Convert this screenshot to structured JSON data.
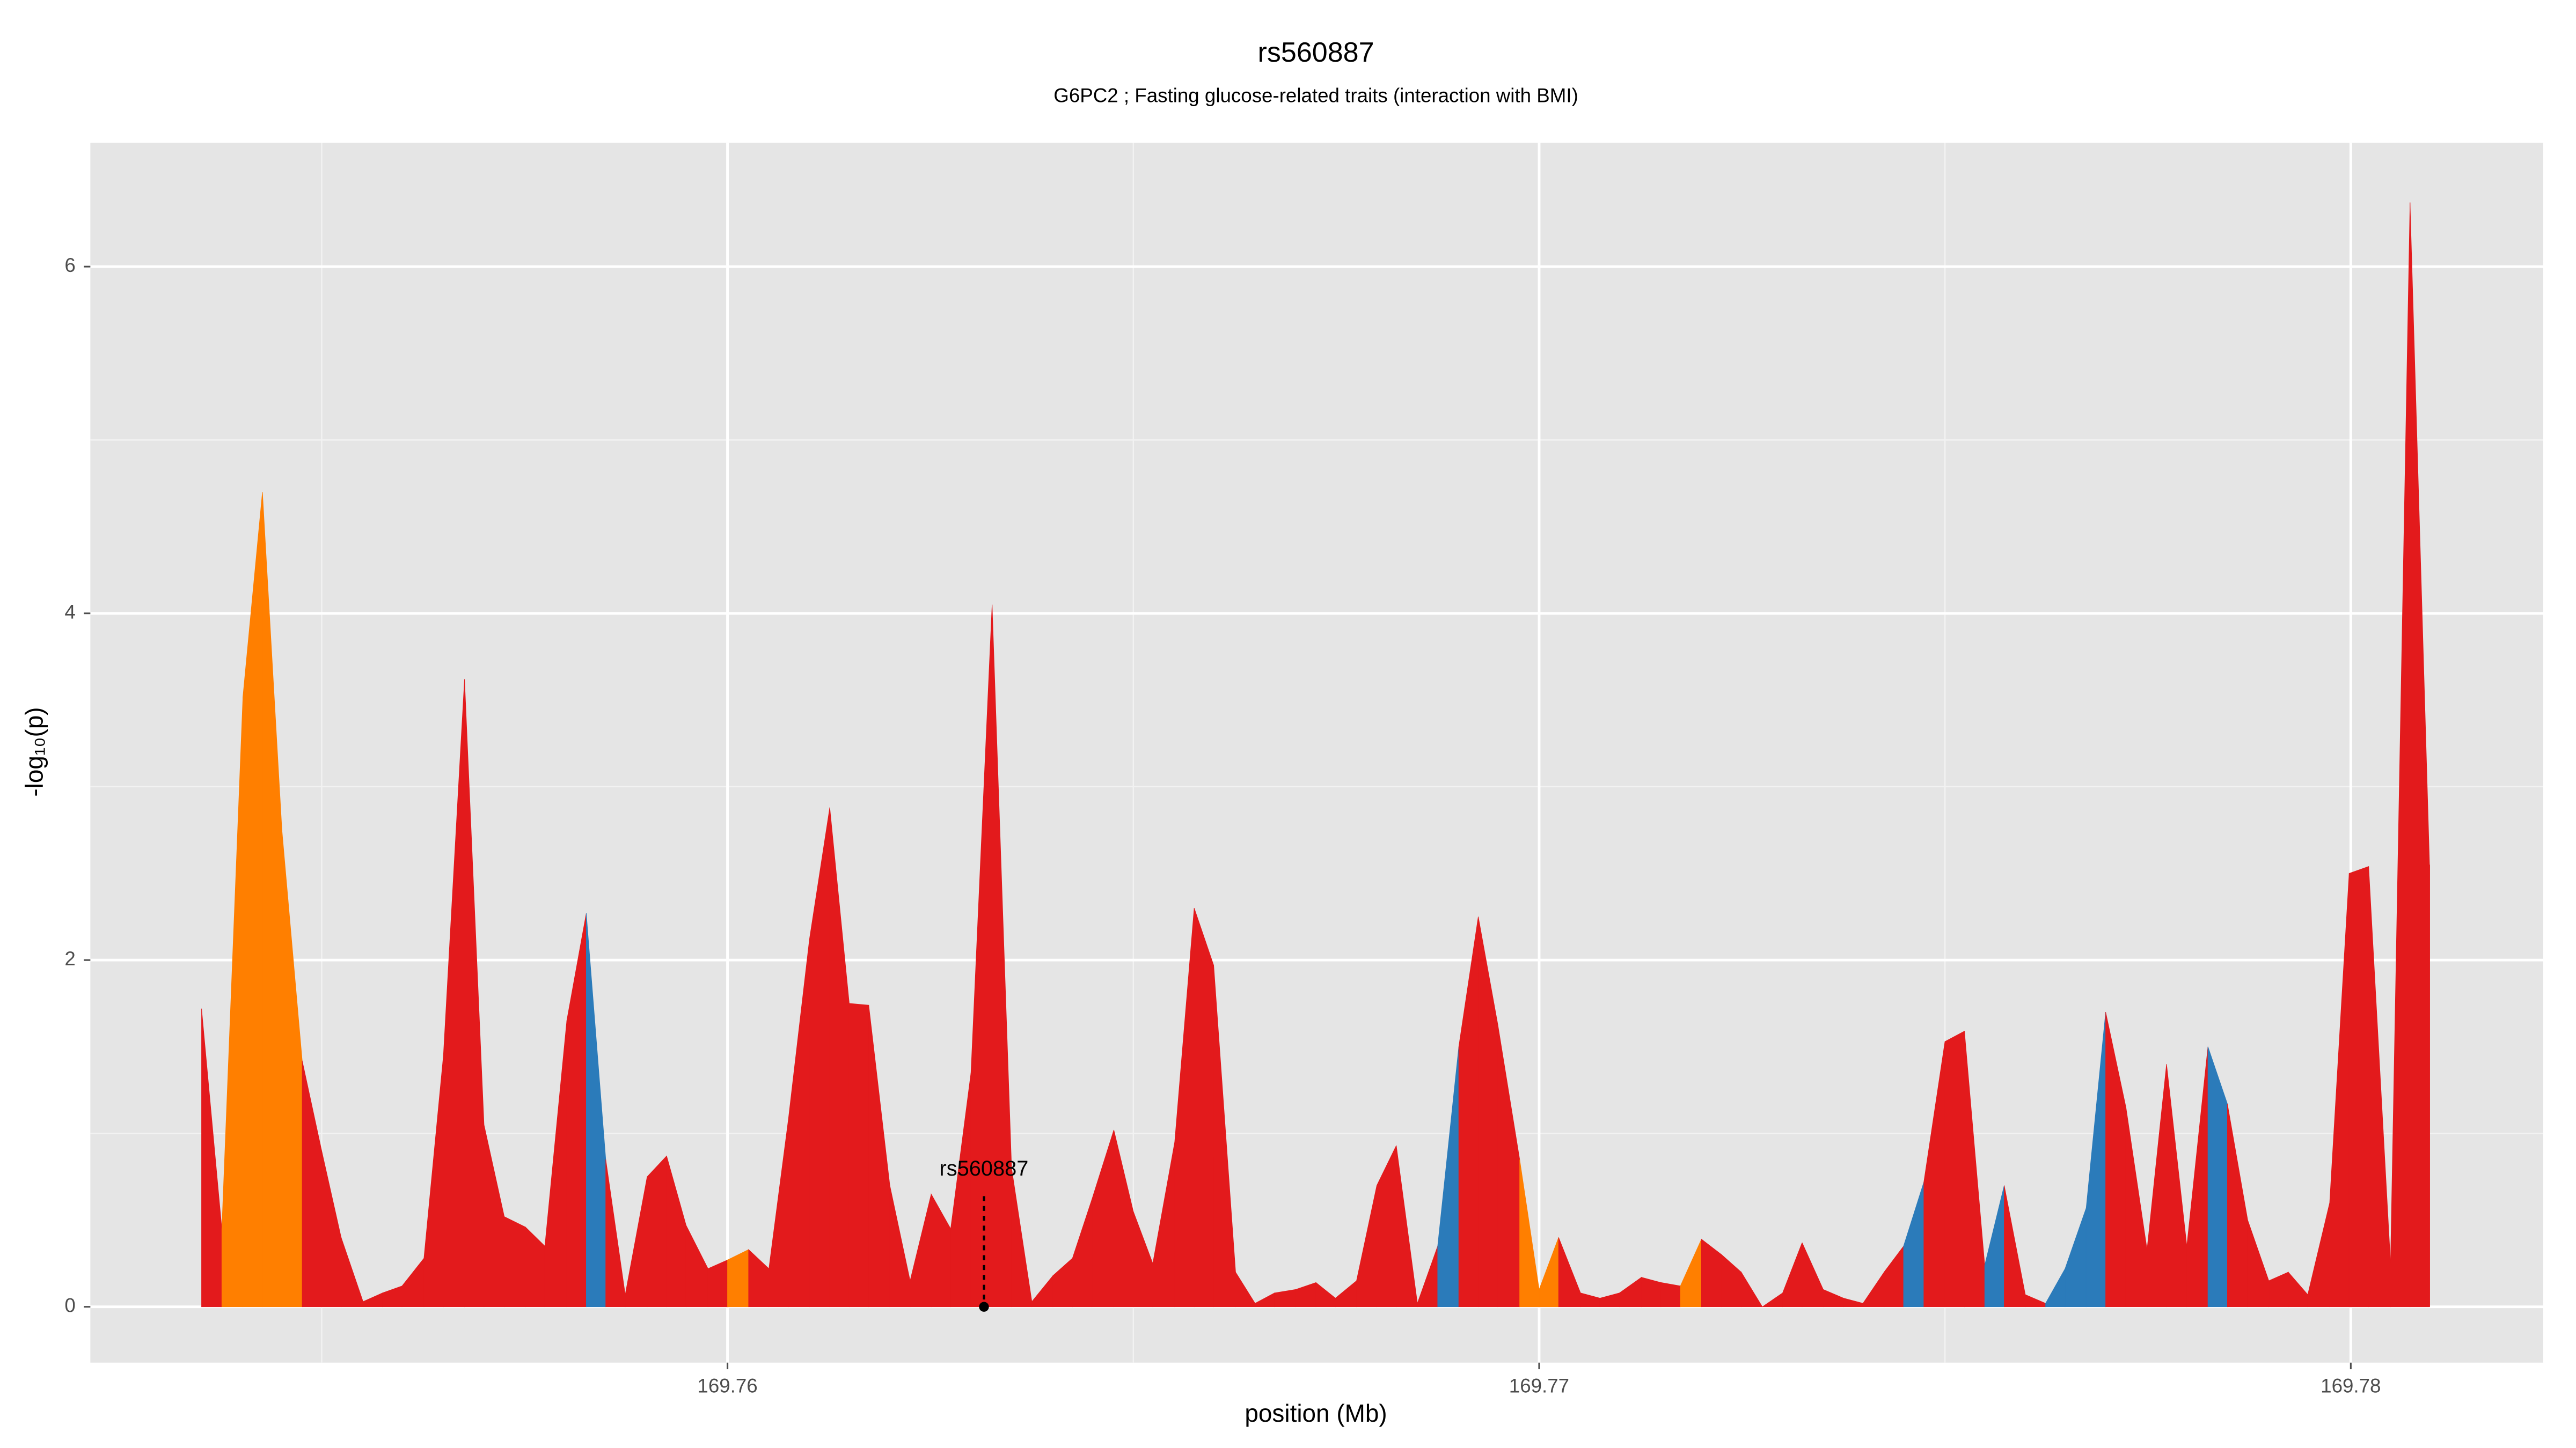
{
  "chart_data": {
    "type": "area",
    "title": "rs560887",
    "subtitle": "G6PC2 ; Fasting glucose-related traits (interaction with BMI)",
    "xlabel": "position (Mb)",
    "ylabel": "-log₁₀(p)",
    "xlim": [
      169.75215,
      169.78237
    ],
    "ylim": [
      -0.322,
      6.714
    ],
    "xticks": [
      169.76,
      169.77,
      169.78
    ],
    "yticks": [
      0,
      2,
      4,
      6
    ],
    "x_minor_grid": [
      169.755,
      169.765,
      169.775
    ],
    "y_minor_grid": [
      1,
      3,
      5
    ],
    "grid": true,
    "x": [
      169.75352,
      169.75377,
      169.75403,
      169.75427,
      169.75451,
      169.75476,
      169.755,
      169.75524,
      169.75551,
      169.75575,
      169.75599,
      169.75626,
      169.7565,
      169.75676,
      169.757,
      169.75725,
      169.75751,
      169.75775,
      169.75802,
      169.75826,
      169.7585,
      169.75874,
      169.75901,
      169.75925,
      169.75949,
      169.75976,
      169.76,
      169.76026,
      169.76051,
      169.76075,
      169.76101,
      169.76126,
      169.7615,
      169.76174,
      169.762,
      169.76225,
      169.76251,
      169.76275,
      169.763,
      169.76326,
      169.7635,
      169.76375,
      169.76401,
      169.76425,
      169.76449,
      169.76476,
      169.765,
      169.76524,
      169.76551,
      169.76575,
      169.76599,
      169.76626,
      169.7665,
      169.76674,
      169.767,
      169.76725,
      169.76749,
      169.76775,
      169.768,
      169.76824,
      169.7685,
      169.76875,
      169.76901,
      169.76925,
      169.76949,
      169.76976,
      169.77,
      169.77024,
      169.77051,
      169.77075,
      169.77099,
      169.77126,
      169.7715,
      169.77174,
      169.772,
      169.77225,
      169.77249,
      169.77275,
      169.773,
      169.77324,
      169.7735,
      169.77375,
      169.77399,
      169.77425,
      169.77449,
      169.77474,
      169.775,
      169.77524,
      169.77549,
      169.77573,
      169.77599,
      169.77624,
      169.77648,
      169.77674,
      169.77698,
      169.77723,
      169.77749,
      169.77773,
      169.77798,
      169.77824,
      169.77848,
      169.77873,
      169.77899,
      169.77923,
      169.77947,
      169.77974,
      169.77998,
      169.78022,
      169.78049,
      169.78073,
      169.78097
    ],
    "values": [
      1.72,
      0.45,
      3.52,
      4.7,
      2.75,
      1.42,
      0.9,
      0.4,
      0.03,
      0.08,
      0.12,
      0.28,
      1.45,
      3.62,
      1.05,
      0.52,
      0.46,
      0.35,
      1.65,
      2.27,
      0.85,
      0.07,
      0.75,
      0.87,
      0.47,
      0.22,
      0.27,
      0.33,
      0.22,
      1.08,
      2.12,
      2.88,
      1.75,
      1.74,
      0.7,
      0.15,
      0.65,
      0.45,
      1.35,
      4.05,
      0.8,
      0.03,
      0.18,
      0.28,
      0.62,
      1.02,
      0.55,
      0.25,
      0.95,
      2.3,
      1.97,
      0.2,
      0.02,
      0.08,
      0.1,
      0.14,
      0.05,
      0.15,
      0.7,
      0.93,
      0.02,
      0.35,
      1.5,
      2.25,
      1.63,
      0.85,
      0.1,
      0.4,
      0.08,
      0.05,
      0.08,
      0.17,
      0.14,
      0.12,
      0.39,
      0.3,
      0.2,
      0.0,
      0.08,
      0.37,
      0.1,
      0.05,
      0.02,
      0.2,
      0.35,
      0.72,
      1.53,
      1.59,
      0.24,
      0.7,
      0.07,
      0.02,
      0.22,
      0.57,
      1.7,
      1.15,
      0.33,
      1.4,
      0.35,
      1.5,
      1.17,
      0.5,
      0.15,
      0.2,
      0.07,
      0.6,
      2.5,
      2.54,
      0.25,
      6.37,
      2.55
    ],
    "colors": [
      "#e31a1c",
      "#ff7f00",
      "#ff7f00",
      "#ff7f00",
      "#ff7f00",
      "#e31a1c",
      "#e31a1c",
      "#e31a1c",
      "#e31a1c",
      "#e31a1c",
      "#e31a1c",
      "#e31a1c",
      "#e31a1c",
      "#e31a1c",
      "#e31a1c",
      "#e31a1c",
      "#e31a1c",
      "#e31a1c",
      "#e31a1c",
      "#2b7bba",
      "#e31a1c",
      "#e31a1c",
      "#e31a1c",
      "#e31a1c",
      "#e31a1c",
      "#e31a1c",
      "#ff7f00",
      "#e31a1c",
      "#e31a1c",
      "#e31a1c",
      "#e31a1c",
      "#e31a1c",
      "#e31a1c",
      "#e31a1c",
      "#e31a1c",
      "#e31a1c",
      "#e31a1c",
      "#e31a1c",
      "#e31a1c",
      "#e31a1c",
      "#e31a1c",
      "#e31a1c",
      "#e31a1c",
      "#e31a1c",
      "#e31a1c",
      "#e31a1c",
      "#e31a1c",
      "#e31a1c",
      "#e31a1c",
      "#e31a1c",
      "#e31a1c",
      "#e31a1c",
      "#e31a1c",
      "#e31a1c",
      "#e31a1c",
      "#e31a1c",
      "#e31a1c",
      "#e31a1c",
      "#e31a1c",
      "#e31a1c",
      "#e31a1c",
      "#2b7bba",
      "#e31a1c",
      "#e31a1c",
      "#e31a1c",
      "#ff7f00",
      "#ff7f00",
      "#e31a1c",
      "#e31a1c",
      "#e31a1c",
      "#e31a1c",
      "#e31a1c",
      "#e31a1c",
      "#ff7f00",
      "#e31a1c",
      "#e31a1c",
      "#e31a1c",
      "#e31a1c",
      "#e31a1c",
      "#e31a1c",
      "#e31a1c",
      "#e31a1c",
      "#e31a1c",
      "#e31a1c",
      "#2b7bba",
      "#e31a1c",
      "#e31a1c",
      "#e31a1c",
      "#2b7bba",
      "#e31a1c",
      "#e31a1c",
      "#2b7bba",
      "#2b7bba",
      "#2b7bba",
      "#e31a1c",
      "#e31a1c",
      "#e31a1c",
      "#e31a1c",
      "#e31a1c",
      "#2b7bba",
      "#e31a1c",
      "#e31a1c",
      "#e31a1c",
      "#e31a1c",
      "#e31a1c",
      "#e31a1c",
      "#e31a1c",
      "#e31a1c",
      "#e31a1c",
      "#e31a1c",
      "#e31a1c"
    ],
    "annotation": {
      "label": "rs560887",
      "x": 169.76316,
      "y": 0,
      "label_y": 0.79
    }
  }
}
